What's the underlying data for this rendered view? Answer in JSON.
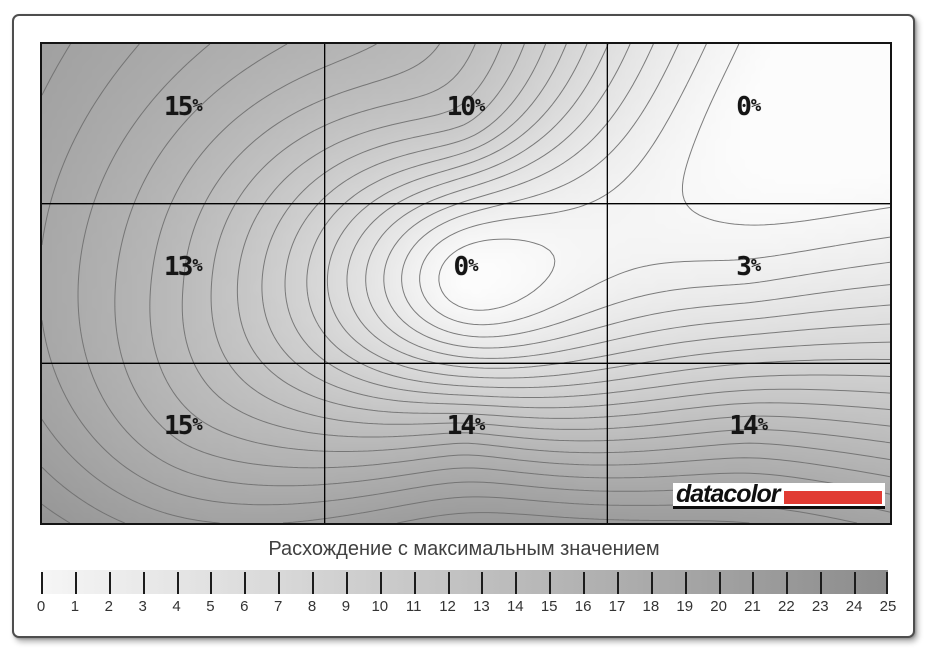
{
  "window": {
    "background_color": "#ffffff",
    "border_color": "#4e4e4e"
  },
  "chart_data": {
    "type": "contour",
    "title": "Расхождение с максимальным значением",
    "grid": {
      "rows": 3,
      "cols": 3
    },
    "cell_deviation_percent": [
      [
        15,
        10,
        0
      ],
      [
        13,
        0,
        3
      ],
      [
        15,
        14,
        14
      ]
    ],
    "cell_labels": [
      [
        "15%",
        "10%",
        "0%"
      ],
      [
        "13%",
        "0%",
        "3%"
      ],
      [
        "15%",
        "14%",
        "14%"
      ]
    ],
    "contour_levels_step": 1,
    "value_range": [
      0,
      25
    ],
    "map_color_low": "#fcfcfc",
    "map_color_high": "#808080",
    "contour_line_color": "#6f6f6f",
    "grid_line_color": "#000000",
    "colorbar": {
      "min": 0,
      "max": 25,
      "tick_labels": [
        "0",
        "1",
        "2",
        "3",
        "4",
        "5",
        "6",
        "7",
        "8",
        "9",
        "10",
        "11",
        "12",
        "13",
        "14",
        "15",
        "16",
        "17",
        "18",
        "19",
        "20",
        "21",
        "22",
        "23",
        "24",
        "25"
      ],
      "gradient_left": "#f6f6f6",
      "gradient_right": "#8c8c8c",
      "tick_color": "#1c1c1c"
    }
  },
  "logo": {
    "text": "datacolor",
    "red_bar_color": "#e13b33"
  }
}
